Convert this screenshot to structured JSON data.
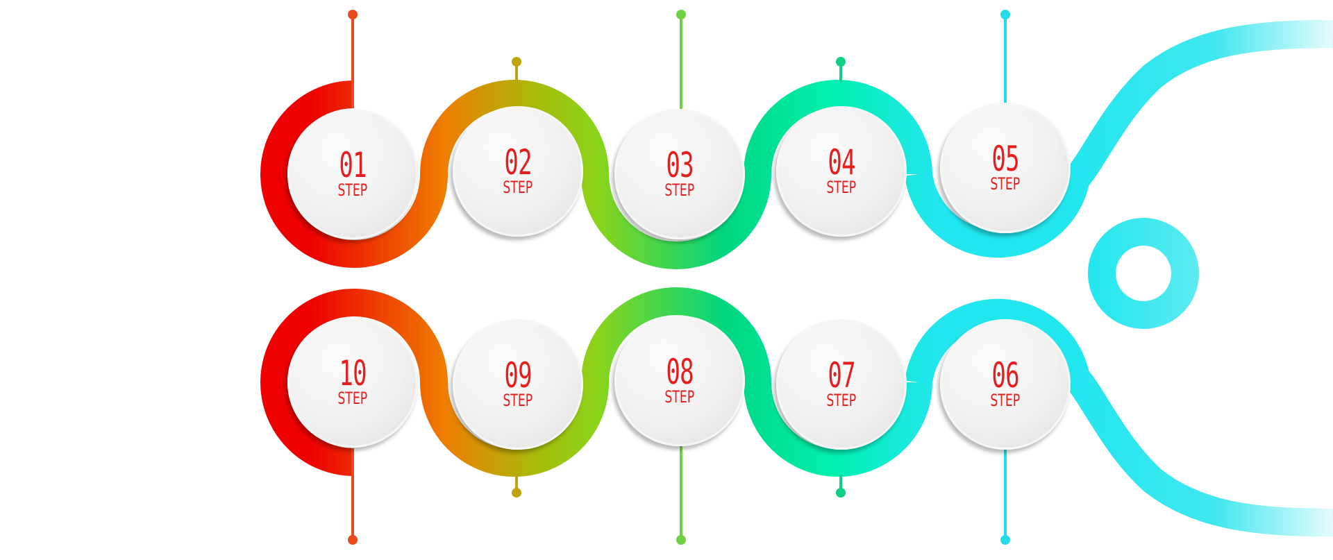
{
  "colors": {
    "text_red": "#e61d1d",
    "ring_red": "#ee0000",
    "ring_orange": "#ee7d00",
    "ring_olive": "#a6bc0a",
    "ring_green": "#8bd41a",
    "ring_emerald": "#00d67f",
    "ring_mint": "#00f0b0",
    "ring_cyan": "#22e6ee",
    "pin_1": "#e84a1c",
    "pin_2": "#c0a40e",
    "pin_3": "#6fcf45",
    "pin_4": "#12cf86",
    "pin_5": "#25dbe8"
  },
  "steps": [
    {
      "id": "step-01",
      "number": "01",
      "label": "STEP"
    },
    {
      "id": "step-02",
      "number": "02",
      "label": "STEP"
    },
    {
      "id": "step-03",
      "number": "03",
      "label": "STEP"
    },
    {
      "id": "step-04",
      "number": "04",
      "label": "STEP"
    },
    {
      "id": "step-05",
      "number": "05",
      "label": "STEP"
    },
    {
      "id": "step-06",
      "number": "06",
      "label": "STEP"
    },
    {
      "id": "step-07",
      "number": "07",
      "label": "STEP"
    },
    {
      "id": "step-08",
      "number": "08",
      "label": "STEP"
    },
    {
      "id": "step-09",
      "number": "09",
      "label": "STEP"
    },
    {
      "id": "step-10",
      "number": "10",
      "label": "STEP"
    }
  ]
}
